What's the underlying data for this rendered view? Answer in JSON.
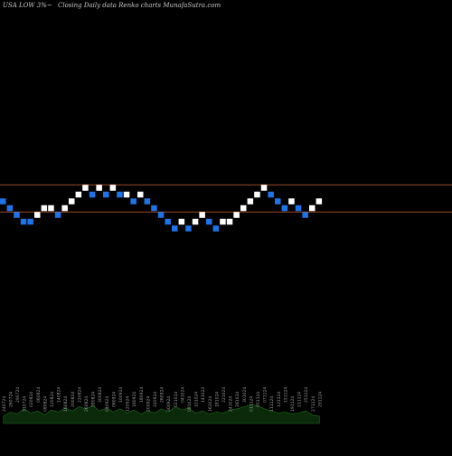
{
  "title": {
    "symbol": "USA LOW 3%~",
    "chart_label": "Closing Daily data  Renko  charts MunafaSutra.com"
  },
  "colors": {
    "background": "#000000",
    "up_brick": "#ffffff",
    "down_brick": "#1e73e6",
    "level_line": "#c86432",
    "volume_fill": "#0a2a0a",
    "volume_stroke": "#1e6e1e",
    "date_label": "#9a9a9a"
  },
  "chart_data": {
    "type": "renko",
    "bricks": [
      {
        "level": 0,
        "dir": "down"
      },
      {
        "level": -1,
        "dir": "down"
      },
      {
        "level": -2,
        "dir": "down"
      },
      {
        "level": -3,
        "dir": "down"
      },
      {
        "level": -3,
        "dir": "down"
      },
      {
        "level": -2,
        "dir": "up"
      },
      {
        "level": -1,
        "dir": "up"
      },
      {
        "level": -1,
        "dir": "up"
      },
      {
        "level": -2,
        "dir": "down"
      },
      {
        "level": -1,
        "dir": "up"
      },
      {
        "level": 0,
        "dir": "up"
      },
      {
        "level": 1,
        "dir": "up"
      },
      {
        "level": 2,
        "dir": "up"
      },
      {
        "level": 1,
        "dir": "down"
      },
      {
        "level": 2,
        "dir": "up"
      },
      {
        "level": 1,
        "dir": "down"
      },
      {
        "level": 2,
        "dir": "up"
      },
      {
        "level": 1,
        "dir": "down"
      },
      {
        "level": 1,
        "dir": "up"
      },
      {
        "level": 0,
        "dir": "down"
      },
      {
        "level": 1,
        "dir": "up"
      },
      {
        "level": 0,
        "dir": "down"
      },
      {
        "level": -1,
        "dir": "down"
      },
      {
        "level": -2,
        "dir": "down"
      },
      {
        "level": -3,
        "dir": "down"
      },
      {
        "level": -4,
        "dir": "down"
      },
      {
        "level": -3,
        "dir": "up"
      },
      {
        "level": -4,
        "dir": "down"
      },
      {
        "level": -3,
        "dir": "up"
      },
      {
        "level": -2,
        "dir": "up"
      },
      {
        "level": -3,
        "dir": "down"
      },
      {
        "level": -4,
        "dir": "down"
      },
      {
        "level": -3,
        "dir": "up"
      },
      {
        "level": -3,
        "dir": "up"
      },
      {
        "level": -2,
        "dir": "up"
      },
      {
        "level": -1,
        "dir": "up"
      },
      {
        "level": 0,
        "dir": "up"
      },
      {
        "level": 1,
        "dir": "up"
      },
      {
        "level": 2,
        "dir": "up"
      },
      {
        "level": 1,
        "dir": "down"
      },
      {
        "level": 0,
        "dir": "down"
      },
      {
        "level": -1,
        "dir": "down"
      },
      {
        "level": 0,
        "dir": "up"
      },
      {
        "level": -1,
        "dir": "down"
      },
      {
        "level": -2,
        "dir": "down"
      },
      {
        "level": -1,
        "dir": "up"
      },
      {
        "level": 0,
        "dir": "up"
      }
    ],
    "level_lines": [
      2,
      -1
    ],
    "volume": [
      0.35,
      0.55,
      0.45,
      0.7,
      0.5,
      0.6,
      0.4,
      0.65,
      0.55,
      0.75,
      0.6,
      0.8,
      0.7,
      0.85,
      0.6,
      0.75,
      0.55,
      0.7,
      0.5,
      0.65,
      0.45,
      0.6,
      0.5,
      0.7,
      0.55,
      0.8,
      0.65,
      0.75,
      0.5,
      0.6,
      0.45,
      0.55,
      0.5,
      0.65,
      0.7,
      0.8,
      0.9,
      0.85,
      0.7,
      0.6,
      0.5,
      0.55,
      0.45,
      0.5,
      0.6,
      0.4,
      0.35
    ],
    "date_labels": [
      "240724",
      "260724",
      "290724",
      "310724",
      "020824",
      "060824",
      "080824",
      "120824",
      "140824",
      "160824",
      "200824",
      "220824",
      "260824",
      "280824",
      "300824",
      "040924",
      "060924",
      "100924",
      "120924",
      "160924",
      "180924",
      "200924",
      "240924",
      "260924",
      "300924",
      "021024",
      "041024",
      "081024",
      "101024",
      "141024",
      "161024",
      "181024",
      "221024",
      "241024",
      "281024",
      "301024",
      "011124",
      "051124",
      "071124",
      "111124",
      "131124",
      "151124",
      "191124",
      "211124",
      "251124",
      "271124",
      "291124"
    ],
    "grid": false
  }
}
